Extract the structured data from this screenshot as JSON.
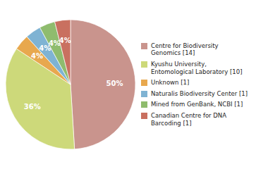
{
  "chart_data": {
    "type": "pie",
    "categories": [
      "Centre for Biodiversity\nGenomics [14]",
      "Kyushu University,\nEntomological Laboratory [10]",
      "Unknown [1]",
      "Naturalis Biodiversity Center [1]",
      "Mined from GenBank, NCBI [1]",
      "Canadian Centre for DNA\nBarcoding [1]"
    ],
    "values": [
      50,
      36,
      4,
      4,
      4,
      4
    ],
    "value_labels": [
      "50%",
      "36%",
      "4%",
      "4%",
      "4%",
      "4%"
    ],
    "colors": [
      "#c9948d",
      "#cdd97a",
      "#e8a84e",
      "#7fb3d3",
      "#8fbc6e",
      "#c97060"
    ],
    "data_labels": true,
    "legend": "right"
  }
}
